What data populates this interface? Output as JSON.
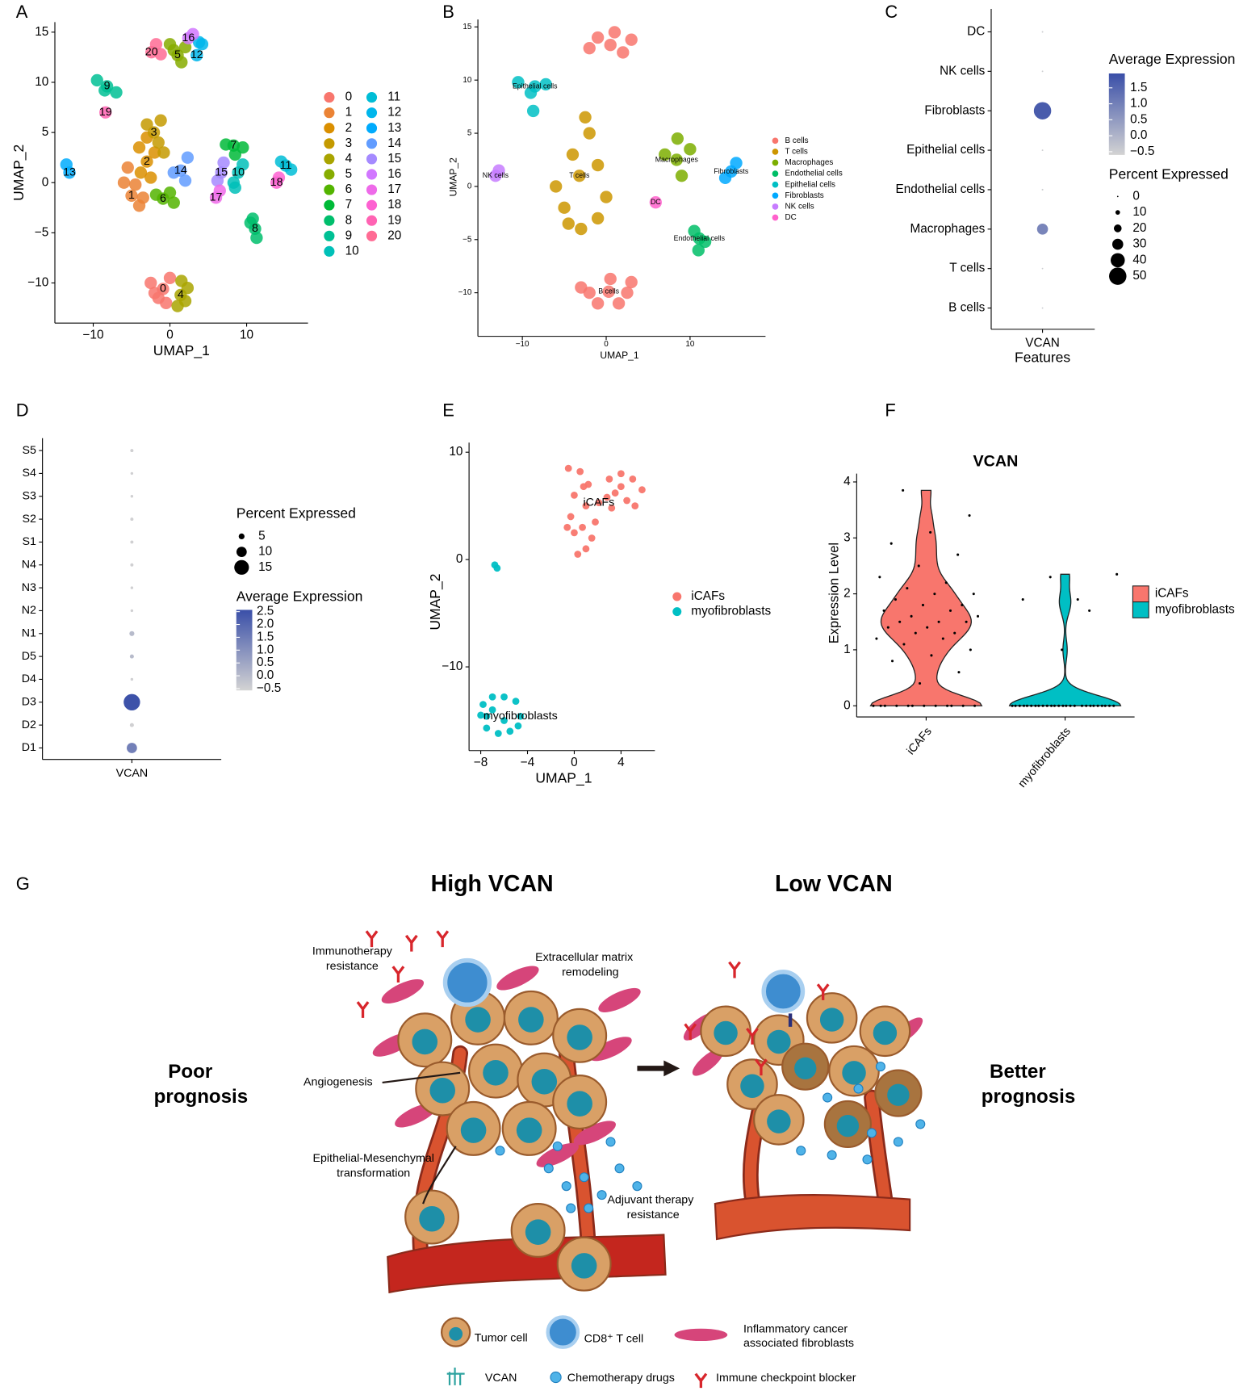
{
  "panel_labels": [
    "A",
    "B",
    "C",
    "D",
    "E",
    "F",
    "G"
  ],
  "chart_data": [
    {
      "type": "scatter",
      "xlabel": "UMAP_1",
      "ylabel": "UMAP_2",
      "xlim": [
        -15,
        18
      ],
      "ylim": [
        -14,
        16
      ],
      "xticks": [
        {
          "value": -10,
          "label": "−10"
        },
        0,
        10
      ],
      "yticks": [
        {
          "value": -10,
          "label": "−10"
        },
        {
          "value": -5,
          "label": "−5"
        },
        0,
        5,
        10,
        15
      ],
      "series": [
        {
          "name": "0",
          "color": "#F8766D",
          "x": [
            -0.9,
            -2.5,
            -1.5,
            0,
            -2,
            -0.5
          ],
          "y": [
            -10.6,
            -10,
            -11.5,
            -9.5,
            -11,
            -12
          ]
        },
        {
          "name": "1",
          "color": "#EB8335",
          "x": [
            -5,
            -6,
            -4,
            -5.5,
            -4.5,
            -3.5
          ],
          "y": [
            -1.3,
            0,
            -2.3,
            1.5,
            -0.2,
            -1.5
          ]
        },
        {
          "name": "2",
          "color": "#DA8F00",
          "x": [
            -3,
            -4,
            -2.5,
            -3.8,
            -2,
            -3
          ],
          "y": [
            2.1,
            3.5,
            0.5,
            1,
            3,
            4.5
          ]
        },
        {
          "name": "3",
          "color": "#C49A00",
          "x": [
            -2.1,
            -1.2,
            -3,
            -1.5,
            -0.8
          ],
          "y": [
            5,
            6.2,
            5.8,
            4,
            3
          ]
        },
        {
          "name": "4",
          "color": "#A9A400",
          "x": [
            1.4,
            2.3,
            1,
            2,
            1.5
          ],
          "y": [
            -11.2,
            -10.5,
            -12.3,
            -11.8,
            -9.8
          ]
        },
        {
          "name": "5",
          "color": "#86AC00",
          "x": [
            1,
            0,
            2,
            1.5,
            0.5
          ],
          "y": [
            12.7,
            13.8,
            13.5,
            12,
            13.2
          ]
        },
        {
          "name": "6",
          "color": "#53B400",
          "x": [
            -0.9,
            0,
            -1.8,
            0.5
          ],
          "y": [
            -1.6,
            -1,
            -1.2,
            -2
          ]
        },
        {
          "name": "7",
          "color": "#00BA38",
          "x": [
            8.3,
            7.3,
            9.5,
            8.5
          ],
          "y": [
            3.7,
            3.8,
            3.5,
            2.8
          ]
        },
        {
          "name": "8",
          "color": "#00BE6C",
          "x": [
            11.1,
            10.5,
            11.3,
            10.8
          ],
          "y": [
            -4.6,
            -4,
            -5.5,
            -3.6
          ]
        },
        {
          "name": "9",
          "color": "#00C094",
          "x": [
            -8.2,
            -9.5,
            -7,
            -8.5
          ],
          "y": [
            9.6,
            10.2,
            9,
            9.2
          ]
        },
        {
          "name": "10",
          "color": "#00C0B8",
          "x": [
            8.9,
            8.3,
            9.5,
            8.5
          ],
          "y": [
            1,
            0,
            1.8,
            -0.5
          ]
        },
        {
          "name": "11",
          "color": "#00BDD6",
          "x": [
            15.1,
            14.5,
            15.8
          ],
          "y": [
            1.7,
            2.1,
            1.3
          ]
        },
        {
          "name": "12",
          "color": "#00B6EB",
          "x": [
            3.5,
            4.2,
            3.8
          ],
          "y": [
            12.7,
            13.8,
            14
          ]
        },
        {
          "name": "13",
          "color": "#00ABFD",
          "x": [
            -13.1,
            -13.5
          ],
          "y": [
            1,
            1.8
          ]
        },
        {
          "name": "14",
          "color": "#619CFF",
          "x": [
            1.4,
            0.5,
            2.3,
            2
          ],
          "y": [
            1.2,
            1,
            2.5,
            0.2
          ]
        },
        {
          "name": "15",
          "color": "#A58AFF",
          "x": [
            6.7,
            6.2,
            7
          ],
          "y": [
            1,
            0.2,
            2
          ]
        },
        {
          "name": "16",
          "color": "#D177FF",
          "x": [
            2.4,
            3
          ],
          "y": [
            14.4,
            14.8
          ]
        },
        {
          "name": "17",
          "color": "#EE6AE9",
          "x": [
            6,
            6.5
          ],
          "y": [
            -1.5,
            -0.8
          ]
        },
        {
          "name": "18",
          "color": "#FD61D1",
          "x": [
            13.9,
            14.2
          ],
          "y": [
            0,
            0.5
          ]
        },
        {
          "name": "19",
          "color": "#FF63B3",
          "x": [
            -8.4
          ],
          "y": [
            7
          ]
        },
        {
          "name": "20",
          "color": "#FF6B94",
          "x": [
            -2.4,
            -1.8,
            -1.2
          ],
          "y": [
            13,
            13.8,
            12.8
          ]
        }
      ]
    },
    {
      "type": "scatter",
      "xlabel": "UMAP_1",
      "ylabel": "UMAP_2",
      "xlim": [
        -15.3,
        19
      ],
      "ylim": [
        -14.1,
        15.7
      ],
      "xticks": [
        {
          "value": -10,
          "label": "−10"
        },
        0,
        10
      ],
      "yticks": [
        {
          "value": -10,
          "label": "−10"
        },
        {
          "value": -5,
          "label": "−5"
        },
        0,
        5,
        10,
        15
      ],
      "series": [
        {
          "name": "B cells",
          "color": "#F8766D",
          "x": [
            0.3,
            -2,
            2.5,
            -1,
            1.5,
            0.5,
            -3,
            3,
            0.5,
            -2,
            3,
            1,
            -1,
            2
          ],
          "y": [
            -9.9,
            -10,
            -10,
            -11,
            -11,
            -8.7,
            -9.5,
            -9,
            13.3,
            13,
            13.8,
            14.5,
            14,
            12.6
          ]
        },
        {
          "name": "T cells",
          "color": "#CD9600",
          "x": [
            -3.2,
            -5,
            -1,
            -4,
            -2,
            -6,
            -3,
            -1,
            -2.5,
            0,
            -4.5
          ],
          "y": [
            1,
            -2,
            -3,
            3,
            5,
            0,
            -4,
            2,
            6.5,
            -1,
            -3.5
          ]
        },
        {
          "name": "Macrophages",
          "color": "#7CAE00",
          "x": [
            8.4,
            7,
            10,
            9,
            8.5
          ],
          "y": [
            2.5,
            3,
            3.5,
            1,
            4.5
          ]
        },
        {
          "name": "Endothelial cells",
          "color": "#00BE67",
          "x": [
            11.1,
            10.5,
            11.8,
            11
          ],
          "y": [
            -4.9,
            -4.2,
            -5.2,
            -6
          ]
        },
        {
          "name": "Epithelial cells",
          "color": "#00BFC4",
          "x": [
            -8.5,
            -10.5,
            -7.2,
            -9,
            -8.7
          ],
          "y": [
            9.4,
            9.8,
            9.6,
            8.8,
            7.1
          ]
        },
        {
          "name": "Fibroblasts",
          "color": "#00A9FF",
          "x": [
            14.9,
            14.2,
            15.5
          ],
          "y": [
            1.4,
            0.8,
            2.2
          ]
        },
        {
          "name": "NK cells",
          "color": "#C77CFF",
          "x": [
            -13.2,
            -12.8
          ],
          "y": [
            1,
            1.5
          ]
        },
        {
          "name": "DC",
          "color": "#FF61CC",
          "x": [
            5.9
          ],
          "y": [
            -1.5
          ]
        }
      ]
    },
    {
      "type": "dotplot",
      "xlabel": "Features",
      "features": [
        "VCAN"
      ],
      "categories": [
        "DC",
        "NK cells",
        "Fibroblasts",
        "Epithelial cells",
        "Endothelial cells",
        "Macrophages",
        "T cells",
        "B cells"
      ],
      "percent_expressed": [
        0.5,
        0.3,
        50,
        0.3,
        0.8,
        30,
        0.2,
        0.3
      ],
      "average_expression": [
        -0.5,
        -0.5,
        1.7,
        -0.5,
        -0.5,
        0.9,
        -0.5,
        -0.5
      ],
      "color_legend": {
        "title": "Average Expression",
        "colors": [
          "#D3D3D3",
          "#3A4FA8"
        ],
        "clim": [
          -0.6,
          1.95
        ],
        "ticks": [
          1.5,
          {
            "value": 1,
            "label": "1.0"
          },
          0.5,
          {
            "value": 0,
            "label": "0.0"
          },
          {
            "value": -0.5,
            "label": "−0.5"
          }
        ]
      },
      "size_legend": {
        "title": "Percent Expressed",
        "values": [
          0,
          10,
          20,
          30,
          40,
          50
        ]
      }
    },
    {
      "type": "dotplot",
      "features": [
        "VCAN"
      ],
      "categories": [
        "S5",
        "S4",
        "S3",
        "S2",
        "S1",
        "N4",
        "N3",
        "N2",
        "N1",
        "D5",
        "D4",
        "D3",
        "D2",
        "D1"
      ],
      "percent_expressed": [
        2,
        1.5,
        1.5,
        2,
        2,
        2,
        1.5,
        1.5,
        4,
        3,
        1.5,
        17,
        3,
        10
      ],
      "average_expression": [
        -0.5,
        -0.5,
        -0.5,
        -0.5,
        -0.5,
        -0.5,
        -0.5,
        -0.5,
        0,
        0,
        -0.5,
        2.5,
        -0.5,
        1.4
      ],
      "size_legend": {
        "title": "Percent Expressed",
        "values": [
          5,
          10,
          15
        ]
      },
      "color_legend": {
        "title": "Average Expression",
        "colors": [
          "#D3D3D3",
          "#3A4FA8"
        ],
        "clim": [
          -0.57,
          2.57
        ],
        "ticks": [
          2.5,
          {
            "value": 2,
            "label": "2.0"
          },
          1.5,
          {
            "value": 1,
            "label": "1.0"
          },
          0.5,
          {
            "value": 0,
            "label": "0.0"
          },
          {
            "value": -0.5,
            "label": "−0.5"
          }
        ]
      }
    },
    {
      "type": "scatter",
      "xlabel": "UMAP_1",
      "ylabel": "UMAP_2",
      "xlim": [
        -9,
        6.9
      ],
      "ylim": [
        -17.8,
        10.9
      ],
      "xticks": [
        {
          "value": -8,
          "label": "−8"
        },
        {
          "value": -4,
          "label": "−4"
        },
        0,
        4
      ],
      "yticks": [
        {
          "value": -10,
          "label": "−10"
        },
        0,
        10
      ],
      "series": [
        {
          "name": "iCAFs",
          "color": "#F8766D",
          "x": [
            2.1,
            -0.5,
            0.5,
            1.2,
            0,
            1,
            -0.3,
            0.7,
            1.5,
            3,
            4,
            5,
            5.8,
            3.5,
            4.5,
            5.2,
            2.8,
            0,
            1,
            0.3,
            1.8,
            -0.6,
            0.8,
            4,
            3.2
          ],
          "y": [
            5.3,
            8.5,
            8.2,
            7,
            6,
            5,
            4,
            3,
            2,
            7.5,
            8,
            7.5,
            6.5,
            6.2,
            5.5,
            5,
            5.8,
            2.5,
            1,
            0.5,
            3.5,
            3,
            6.8,
            6.8,
            4.8
          ]
        },
        {
          "name": "myofibroblasts",
          "color": "#00BFC4",
          "x": [
            -4.6,
            -5,
            -6,
            -7,
            -7.8,
            -8,
            -7.5,
            -6.5,
            -5.5,
            -4.8,
            -6,
            -7,
            -7.5,
            -6.8,
            -6.6
          ],
          "y": [
            -14.6,
            -13.2,
            -12.8,
            -12.8,
            -13.5,
            -14.5,
            -15.7,
            -16.2,
            -16,
            -15.5,
            -15,
            -14,
            -14.6,
            -0.5,
            -0.8
          ]
        }
      ]
    },
    {
      "type": "violin",
      "title": "VCAN",
      "ylabel": "Expression Level",
      "categories": [
        "iCAFs",
        "myofibroblasts"
      ],
      "colors": [
        "#F8766D",
        "#00BFC4"
      ],
      "ylim": [
        -0.2,
        4.15
      ],
      "yticks": [
        0,
        1,
        2,
        3,
        4
      ],
      "values": [
        [
          0,
          0,
          0,
          0,
          0,
          0,
          0,
          0,
          0,
          0,
          0,
          0,
          0.4,
          0.6,
          0.8,
          0.9,
          1,
          1.1,
          1.2,
          1.2,
          1.3,
          1.3,
          1.4,
          1.4,
          1.5,
          1.5,
          1.5,
          1.6,
          1.6,
          1.7,
          1.7,
          1.8,
          1.8,
          1.9,
          2,
          2,
          2.1,
          2.2,
          2.3,
          2.5,
          2.7,
          2.9,
          3.1,
          3.4,
          3.85
        ],
        [
          0,
          0,
          0,
          0,
          0,
          0,
          0,
          0,
          0,
          0,
          0,
          0,
          0,
          0,
          0,
          0,
          0,
          0,
          0,
          0,
          0,
          0,
          0,
          0,
          0,
          0,
          1.9,
          2.35,
          2.3,
          1.7,
          1.9,
          1
        ]
      ]
    }
  ],
  "diagram": {
    "left_title": "High VCAN",
    "right_title": "Low VCAN",
    "left_outcome": [
      "Poor",
      "prognosis"
    ],
    "right_outcome": [
      "Better",
      "prognosis"
    ],
    "annotations": [
      [
        "Immunotherapy",
        "resistance"
      ],
      [
        "Extracellular matrix",
        "remodeling"
      ],
      [
        "Angiogenesis"
      ],
      [
        "Epithelial-Mesenchymal",
        "transformation"
      ],
      [
        "Adjuvant therapy",
        "resistance"
      ]
    ],
    "legend": [
      [
        "Tumor cell"
      ],
      [
        "CD8⁺ T cell"
      ],
      [
        "Inflammatory cancer",
        "associated fibroblasts"
      ],
      [
        "VCAN"
      ],
      [
        "Chemotherapy drugs"
      ],
      [
        "Immune checkpoint blocker"
      ]
    ]
  }
}
